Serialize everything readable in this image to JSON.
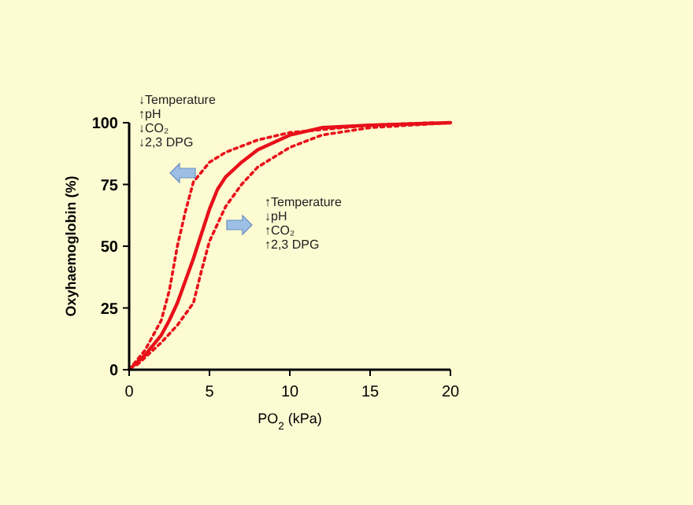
{
  "chart_data": {
    "type": "line",
    "xlabel": "PO$_{2}$ (kPa)",
    "ylabel": "Oxyhaemoglobin (%)",
    "xlim": [
      0,
      20
    ],
    "ylim": [
      0,
      100
    ],
    "xticks": [
      0,
      5,
      10,
      15,
      20
    ],
    "yticks": [
      0,
      25,
      50,
      75,
      100
    ],
    "grid": false,
    "series": [
      {
        "color": "#e8101a",
        "line_style": "dotted",
        "x": [
          0,
          1,
          2,
          2.5,
          3,
          3.5,
          4,
          5,
          6,
          8,
          10,
          15,
          19
        ],
        "values": [
          0,
          8,
          20,
          32,
          50,
          64,
          76,
          84,
          88,
          93,
          96,
          99,
          100
        ]
      },
      {
        "color": "#e8101a",
        "line_style": "solid",
        "x": [
          0,
          1,
          2,
          2.5,
          3,
          3.5,
          4,
          4.5,
          5,
          5.5,
          6,
          7,
          8,
          10,
          12,
          15,
          20
        ],
        "values": [
          0,
          6,
          14,
          20,
          27,
          36,
          45,
          55,
          65,
          73,
          78,
          84,
          89,
          95,
          98,
          99,
          100
        ]
      },
      {
        "color": "#e8101a",
        "line_style": "dotted",
        "x": [
          0.5,
          1,
          2,
          3,
          4,
          4.5,
          5,
          6,
          7,
          8,
          10,
          12,
          15,
          20
        ],
        "values": [
          2,
          5,
          11,
          18,
          27,
          40,
          52,
          66,
          75,
          82,
          90,
          95,
          98,
          100
        ]
      }
    ],
    "annotations": [
      "↓Temperature\n↑pH\n↓CO₂\n↓2,3 DPG",
      "↑Temperature\n↓pH\n↑CO₂\n↑2,3 DPG"
    ]
  }
}
